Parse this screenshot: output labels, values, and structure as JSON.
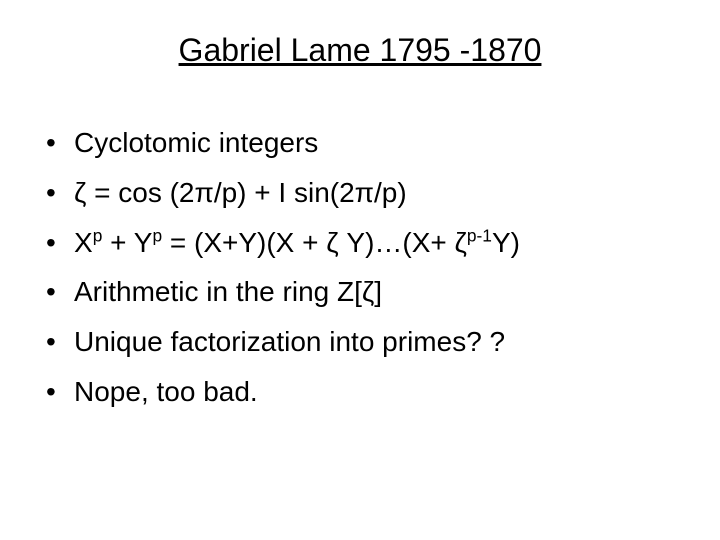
{
  "title": "Gabriel Lame 1795 -1870",
  "title_fontsize": 32,
  "title_color": "#000000",
  "title_underline": true,
  "background_color": "#ffffff",
  "text_color": "#000000",
  "body_fontsize": 28,
  "bullet_char": "•",
  "items": [
    {
      "type": "plain",
      "text": "Cyclotomic integers"
    },
    {
      "type": "plain",
      "text": "ζ = cos (2π/p) + I sin(2π/p)"
    },
    {
      "type": "formula_xp_yp",
      "parts": {
        "t1": "X",
        "s1": "p",
        "t2": " + Y",
        "s2": "p",
        "t3": " = (X+Y)(X + ζ Y)…(X+ ζ",
        "s3": "p-1",
        "t4": "Y)"
      }
    },
    {
      "type": "plain",
      "text": "Arithmetic in the ring Z[ζ]"
    },
    {
      "type": "plain",
      "text": "Unique factorization into primes? ?"
    },
    {
      "type": "plain",
      "text": "Nope,  too bad."
    }
  ]
}
